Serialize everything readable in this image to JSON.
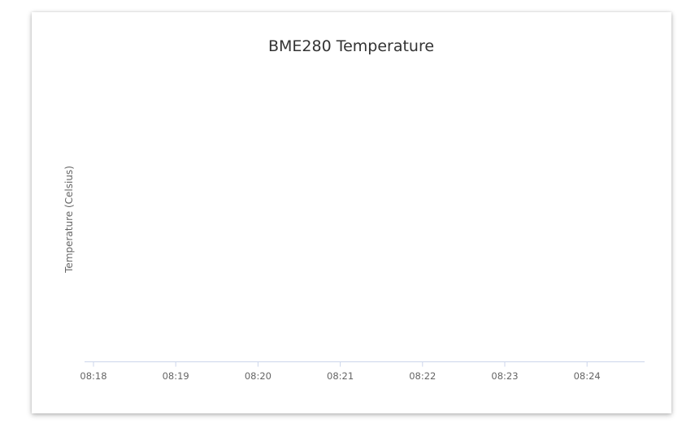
{
  "chart_data": {
    "type": "line",
    "title": "BME280 Temperature",
    "xlabel": "",
    "ylabel": "Temperature (Celsius)",
    "x_tick_labels": [
      "08:18",
      "08:19",
      "08:20",
      "08:21",
      "08:22",
      "08:23",
      "08:24"
    ],
    "series": [],
    "grid": false,
    "legend": "none",
    "colors": {
      "axis_line": "#ccd6eb",
      "text": "#666666",
      "title": "#333333"
    }
  }
}
